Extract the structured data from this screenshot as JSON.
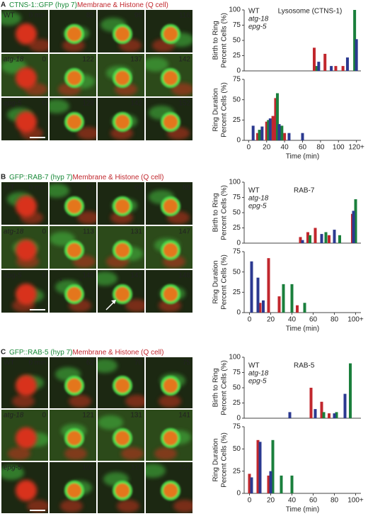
{
  "panels": [
    {
      "label": "A",
      "marker": "CTNS-1::GFP (hyp 7)",
      "stain": "Membrane & Histone (Q cell)",
      "rows": [
        {
          "genotype": "WT",
          "times": [
            "0 min",
            "85",
            "99",
            "116"
          ]
        },
        {
          "genotype": "atg-18",
          "times": [
            "0",
            "122",
            "137",
            "142"
          ]
        },
        {
          "genotype": "epg-5",
          "times": [
            "0",
            "128",
            "142",
            "152"
          ]
        }
      ]
    },
    {
      "label": "B",
      "marker": "GFP::RAB-7 (hyp 7)",
      "stain": "Membrane & Histone (Q cell)",
      "annotations": [
        "*",
        "*"
      ],
      "rows": [
        {
          "genotype": "WT",
          "times": [
            "0 min",
            "61",
            "66",
            "89"
          ]
        },
        {
          "genotype": "atg-18",
          "times": [
            "0",
            "113",
            "131",
            "147"
          ]
        },
        {
          "genotype": "epg-5",
          "times": [
            "0",
            "146",
            "147",
            "148"
          ]
        }
      ]
    },
    {
      "label": "C",
      "marker": "GFP::RAB-5 (hyp 7)",
      "stain": "Membrane & Histone (Q cell)",
      "rows": [
        {
          "genotype": "WT",
          "times": [
            "0 min",
            "62",
            "70",
            "75"
          ]
        },
        {
          "genotype": "atg-18",
          "times": [
            "0",
            "121",
            "131",
            "141"
          ]
        },
        {
          "genotype": "epg-5",
          "times": [
            "0",
            "102",
            "115",
            "122"
          ]
        }
      ]
    }
  ],
  "chart_data": [
    {
      "type": "bar",
      "title": "Lysosome (CTNS-1)",
      "ylabel": [
        "Birth to Ring",
        "Percent Cells (%)"
      ],
      "xlim": [
        -5,
        125
      ],
      "ylim": [
        0,
        100
      ],
      "yticks": [
        0,
        25,
        50,
        75,
        100
      ],
      "series": [
        {
          "name": "WT",
          "color": "#c1272d",
          "x": [
            73,
            85,
            97,
            105
          ],
          "values": [
            38,
            28,
            8,
            8
          ]
        },
        {
          "name": "atg-18",
          "color": "#1a7f3c",
          "x": [
            76,
            118
          ],
          "values": [
            8,
            100
          ]
        },
        {
          "name": "epg-5",
          "color": "#2b3990",
          "x": [
            78,
            92,
            110,
            120
          ],
          "values": [
            15,
            8,
            22,
            52
          ]
        }
      ]
    },
    {
      "type": "bar",
      "ylabel": [
        "Ring Duration",
        "Percent Cells (%)"
      ],
      "xlabel": "Time (min)",
      "xlim": [
        -5,
        125
      ],
      "ylim": [
        0,
        75
      ],
      "yticks": [
        0,
        25,
        50,
        75
      ],
      "xticks": [
        0,
        20,
        40,
        60,
        80,
        100,
        {
          "value": 120,
          "label": "120+"
        }
      ],
      "series": [
        {
          "name": "WT",
          "color": "#c1272d",
          "x": [
            10,
            20,
            27,
            30,
            40
          ],
          "values": [
            9,
            23,
            30,
            52,
            9
          ]
        },
        {
          "name": "atg-18",
          "color": "#1a7f3c",
          "x": [
            12,
            22,
            32,
            37
          ],
          "values": [
            13,
            25,
            58,
            18
          ]
        },
        {
          "name": "epg-5",
          "color": "#2b3990",
          "x": [
            5,
            15,
            24,
            34,
            45,
            60
          ],
          "values": [
            18,
            17,
            27,
            20,
            9,
            9
          ]
        }
      ]
    },
    {
      "type": "bar",
      "title": "RAB-7",
      "ylabel": [
        "Birth to Ring",
        "Percent Cells (%)"
      ],
      "xlim": [
        -5,
        105
      ],
      "ylim": [
        0,
        100
      ],
      "yticks": [
        0,
        25,
        50,
        75,
        100
      ],
      "series": [
        {
          "name": "WT",
          "color": "#c1272d",
          "x": [
            48,
            55,
            62,
            75,
            97
          ],
          "values": [
            10,
            18,
            25,
            13,
            48
          ]
        },
        {
          "name": "atg-18",
          "color": "#1a7f3c",
          "x": [
            57,
            72,
            85,
            100
          ],
          "values": [
            13,
            18,
            13,
            72
          ]
        },
        {
          "name": "epg-5",
          "color": "#2b3990",
          "x": [
            50,
            68,
            80,
            98
          ],
          "values": [
            5,
            15,
            22,
            53
          ]
        }
      ]
    },
    {
      "type": "bar",
      "ylabel": [
        "Ring Duration",
        "Percent Cells (%)"
      ],
      "xlabel": "Time (min)",
      "xlim": [
        -5,
        105
      ],
      "ylim": [
        0,
        75
      ],
      "yticks": [
        0,
        25,
        50,
        75
      ],
      "xticks": [
        0,
        20,
        40,
        60,
        80,
        {
          "value": 100,
          "label": "100+"
        }
      ],
      "series": [
        {
          "name": "WT",
          "color": "#c1272d",
          "x": [
            10,
            18,
            28,
            45
          ],
          "values": [
            12,
            67,
            20,
            9
          ]
        },
        {
          "name": "atg-18",
          "color": "#1a7f3c",
          "x": [
            32,
            40,
            52
          ],
          "values": [
            35,
            35,
            12
          ]
        },
        {
          "name": "epg-5",
          "color": "#2b3990",
          "x": [
            2,
            8,
            13
          ],
          "values": [
            63,
            43,
            15
          ]
        }
      ]
    },
    {
      "type": "bar",
      "title": "RAB-5",
      "ylabel": [
        "Birth to Ring",
        "Percent Cells (%)"
      ],
      "xlim": [
        -5,
        105
      ],
      "ylim": [
        0,
        100
      ],
      "yticks": [
        0,
        25,
        50,
        75,
        100
      ],
      "series": [
        {
          "name": "WT",
          "color": "#c1272d",
          "x": [
            58,
            68,
            75
          ],
          "values": [
            50,
            27,
            8
          ]
        },
        {
          "name": "atg-18",
          "color": "#1a7f3c",
          "x": [
            70,
            82,
            95
          ],
          "values": [
            10,
            10,
            90
          ]
        },
        {
          "name": "epg-5",
          "color": "#2b3990",
          "x": [
            38,
            62,
            80,
            90
          ],
          "values": [
            10,
            15,
            8,
            40
          ]
        }
      ]
    },
    {
      "type": "bar",
      "ylabel": [
        "Ring Duration",
        "Percent Cells (%)"
      ],
      "xlabel": "Time (min)",
      "xlim": [
        -5,
        105
      ],
      "ylim": [
        0,
        75
      ],
      "yticks": [
        0,
        25,
        50,
        75
      ],
      "xticks": [
        0,
        20,
        40,
        60,
        80,
        {
          "value": 100,
          "label": "100+"
        }
      ],
      "series": [
        {
          "name": "WT",
          "color": "#c1272d",
          "x": [
            0,
            8,
            18
          ],
          "values": [
            22,
            60,
            20
          ]
        },
        {
          "name": "atg-18",
          "color": "#1a7f3c",
          "x": [
            22,
            30,
            40
          ],
          "values": [
            60,
            20,
            20
          ]
        },
        {
          "name": "epg-5",
          "color": "#2b3990",
          "x": [
            2,
            10,
            20
          ],
          "values": [
            18,
            58,
            25
          ]
        }
      ]
    }
  ]
}
